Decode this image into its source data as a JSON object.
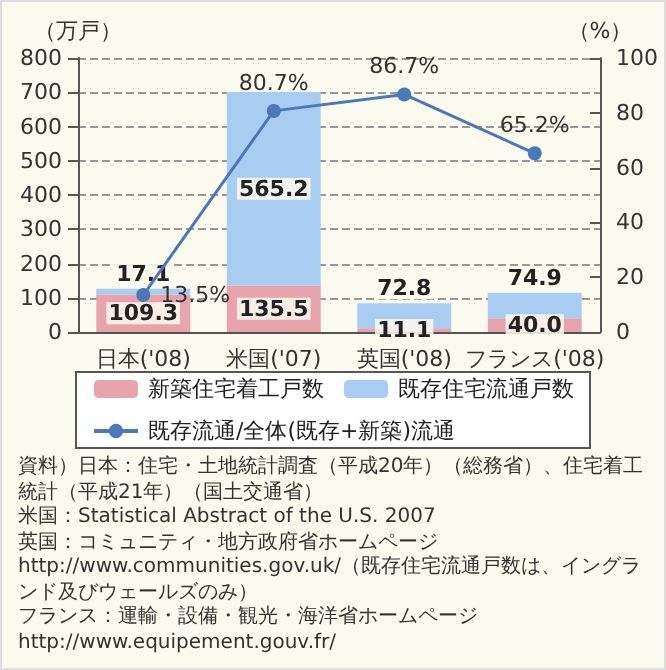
{
  "chart_data": {
    "type": "bar",
    "stacked": true,
    "ylabel": "（万戸）",
    "y2label": "（%）",
    "categories": [
      "日本('08)",
      "米国('07)",
      "英国('08)",
      "フランス('08)"
    ],
    "series": [
      {
        "name": "新築住宅着工戸数",
        "color": "#e8a4ac",
        "values": [
          109.3,
          135.5,
          11.1,
          40.0
        ],
        "value_labels": [
          "109.3",
          "135.5",
          "11.1",
          "40.0"
        ]
      },
      {
        "name": "既存住宅流通戸数",
        "color": "#a9cdf0",
        "values": [
          17.1,
          565.2,
          72.8,
          74.9
        ],
        "value_labels": [
          "17.1",
          "565.2",
          "72.8",
          "74.9"
        ]
      },
      {
        "name": "既存流通/全体(既存+新築)流通",
        "type": "line",
        "axis": "y2",
        "color": "#4a78b8",
        "values": [
          13.5,
          80.7,
          86.7,
          65.2
        ],
        "value_labels": [
          "13.5%",
          "80.7%",
          "86.7%",
          "65.2%"
        ]
      }
    ],
    "marker": "circle",
    "line_style": "solid",
    "ylim": [
      0,
      800
    ],
    "yticks": [
      0,
      100,
      200,
      300,
      400,
      500,
      600,
      700,
      800
    ],
    "y2lim": [
      0,
      100
    ],
    "y2ticks": [
      0,
      20,
      40,
      60,
      80,
      100
    ],
    "grid": "y",
    "legend": "bottom",
    "annotations": [
      "資料）日本：住宅・土地統計調査（平成20年）（総務省）、住宅着工統計（平成21年）（国土交通省）",
      "米国：Statistical Abstract of the U.S. 2007",
      "英国：コミュニティ・地方政府省ホームページ http://www.communities.gov.uk/（既存住宅流通戸数は、イングランド及びウェールズのみ）",
      "フランス：運輸・設備・観光・海洋省ホームページ http://www.equipement.gouv.fr/"
    ]
  }
}
